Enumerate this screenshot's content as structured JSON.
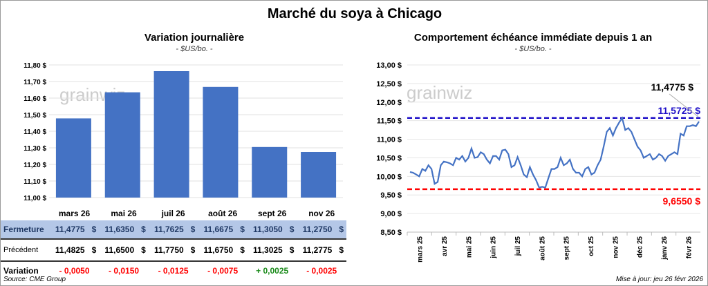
{
  "title": "Marché du soya à Chicago",
  "left": {
    "subtitle": "Variation journalière",
    "unit": "- $US/bo. -",
    "watermark": "grainwiz"
  },
  "right": {
    "subtitle": "Comportement échéance immédiate depuis 1 an",
    "unit": "- $US/bo. -",
    "watermark": "grainwiz",
    "last_label": "11,4775 $",
    "max_label": "11,5725 $",
    "min_label": "9,6550 $"
  },
  "table": {
    "row_labels": {
      "close": "Fermeture",
      "prev": "Précédent",
      "var": "Variation"
    },
    "months": [
      "mars 26",
      "mai 26",
      "juil 26",
      "août 26",
      "sept 26",
      "nov 26"
    ],
    "close": [
      "11,4775",
      "11,6350",
      "11,7625",
      "11,6675",
      "11,3050",
      "11,2750"
    ],
    "prev": [
      "11,4825",
      "11,6500",
      "11,7750",
      "11,6750",
      "11,3025",
      "11,2775"
    ],
    "var": [
      "- 0,0050",
      "- 0,0150",
      "- 0,0125",
      "- 0,0075",
      "+ 0,0025",
      "- 0,0025"
    ],
    "var_sign": [
      "neg",
      "neg",
      "neg",
      "neg",
      "pos",
      "neg"
    ],
    "currency": "$"
  },
  "source": "Source: CME Group",
  "updated": "Mise à jour: jeu 26 févr 2026",
  "chart_data": [
    {
      "type": "bar",
      "title": "Variation journalière",
      "ylabel": "$US/bo.",
      "categories": [
        "mars 26",
        "mai 26",
        "juil 26",
        "août 26",
        "sept 26",
        "nov 26"
      ],
      "values": [
        11.4775,
        11.635,
        11.7625,
        11.6675,
        11.305,
        11.275
      ],
      "ylim": [
        11.0,
        11.8
      ],
      "yticks": [
        "11,00 $",
        "11,10 $",
        "11,20 $",
        "11,30 $",
        "11,40 $",
        "11,50 $",
        "11,60 $",
        "11,70 $",
        "11,80 $"
      ],
      "color": "#4472c4"
    },
    {
      "type": "line",
      "title": "Comportement échéance immédiate depuis 1 an",
      "ylim": [
        8.5,
        13.0
      ],
      "yticks": [
        "8,50 $",
        "9,00 $",
        "9,50 $",
        "10,00 $",
        "10,50 $",
        "11,00 $",
        "11,50 $",
        "12,00 $",
        "12,50 $",
        "13,00 $"
      ],
      "xticks": [
        "mars 25",
        "avr 25",
        "mai 25",
        "juin 25",
        "juil 25",
        "août 25",
        "sept 25",
        "oct 25",
        "nov 25",
        "déc 25",
        "janv 26",
        "févr 26"
      ],
      "series": [
        {
          "name": "Échéance immédiate",
          "color": "#4472c4",
          "values": [
            10.12,
            10.1,
            10.05,
            10.0,
            10.2,
            10.15,
            10.3,
            10.2,
            9.8,
            9.85,
            10.3,
            10.4,
            10.38,
            10.35,
            10.3,
            10.5,
            10.45,
            10.55,
            10.4,
            10.5,
            10.75,
            10.5,
            10.52,
            10.65,
            10.6,
            10.45,
            10.35,
            10.55,
            10.55,
            10.45,
            10.7,
            10.72,
            10.6,
            10.25,
            10.3,
            10.52,
            10.3,
            10.05,
            9.98,
            10.25,
            10.05,
            9.9,
            9.7,
            9.72,
            9.7,
            9.95,
            10.2,
            10.2,
            10.25,
            10.5,
            10.3,
            10.35,
            10.45,
            10.2,
            10.1,
            10.1,
            10.0,
            10.2,
            10.25,
            10.05,
            10.1,
            10.3,
            10.45,
            10.8,
            11.2,
            11.3,
            11.1,
            11.3,
            11.45,
            11.57,
            11.25,
            11.3,
            11.2,
            11.0,
            10.8,
            10.7,
            10.5,
            10.55,
            10.6,
            10.45,
            10.5,
            10.6,
            10.55,
            10.42,
            10.55,
            10.6,
            10.65,
            10.6,
            11.15,
            11.1,
            11.35,
            11.35,
            11.38,
            11.35,
            11.4775
          ]
        }
      ],
      "hlines": [
        {
          "value": 11.5725,
          "color": "#1f10c8",
          "label": "11,5725 $"
        },
        {
          "value": 9.655,
          "color": "#ff0000",
          "label": "9,6550 $"
        }
      ]
    }
  ]
}
